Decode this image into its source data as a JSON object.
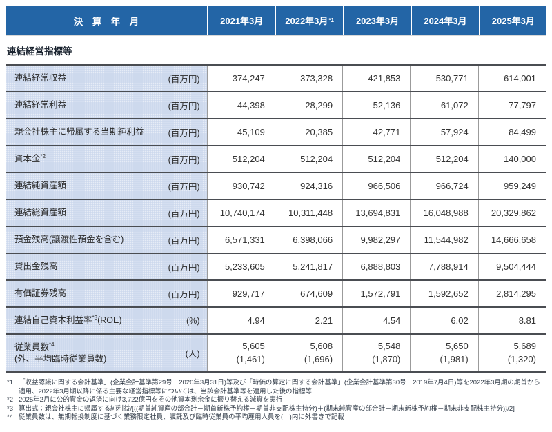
{
  "header": {
    "label": "決　算　年　月",
    "columns": [
      {
        "label": "2021年3月",
        "sup": ""
      },
      {
        "label": "2022年3月",
        "sup": "*1"
      },
      {
        "label": "2023年3月",
        "sup": ""
      },
      {
        "label": "2024年3月",
        "sup": ""
      },
      {
        "label": "2025年3月",
        "sup": ""
      }
    ]
  },
  "section_title": "連結経営指標等",
  "table": {
    "rows": [
      {
        "label": "連結経常収益",
        "sup": "",
        "suffix": "",
        "label_line2": "",
        "unit": "(百万円)",
        "values": [
          "374,247",
          "373,328",
          "421,853",
          "530,771",
          "614,001"
        ],
        "sub_values": []
      },
      {
        "label": "連結経常利益",
        "sup": "",
        "suffix": "",
        "label_line2": "",
        "unit": "(百万円)",
        "values": [
          "44,398",
          "28,299",
          "52,136",
          "61,072",
          "77,797"
        ],
        "sub_values": []
      },
      {
        "label": "親会社株主に帰属する当期純利益",
        "sup": "",
        "suffix": "",
        "label_line2": "",
        "unit": "(百万円)",
        "values": [
          "45,109",
          "20,385",
          "42,771",
          "57,924",
          "84,499"
        ],
        "sub_values": []
      },
      {
        "label": "資本金",
        "sup": "*2",
        "suffix": "",
        "label_line2": "",
        "unit": "(百万円)",
        "values": [
          "512,204",
          "512,204",
          "512,204",
          "512,204",
          "140,000"
        ],
        "sub_values": []
      },
      {
        "label": "連結純資産額",
        "sup": "",
        "suffix": "",
        "label_line2": "",
        "unit": "(百万円)",
        "values": [
          "930,742",
          "924,316",
          "966,506",
          "966,724",
          "959,249"
        ],
        "sub_values": []
      },
      {
        "label": "連結総資産額",
        "sup": "",
        "suffix": "",
        "label_line2": "",
        "unit": "(百万円)",
        "values": [
          "10,740,174",
          "10,311,448",
          "13,694,831",
          "16,048,988",
          "20,329,862"
        ],
        "sub_values": []
      },
      {
        "label": "預金残高(譲渡性預金を含む)",
        "sup": "",
        "suffix": "",
        "label_line2": "",
        "unit": "(百万円)",
        "values": [
          "6,571,331",
          "6,398,066",
          "9,982,297",
          "11,544,982",
          "14,666,658"
        ],
        "sub_values": []
      },
      {
        "label": "貸出金残高",
        "sup": "",
        "suffix": "",
        "label_line2": "",
        "unit": "(百万円)",
        "values": [
          "5,233,605",
          "5,241,817",
          "6,888,803",
          "7,788,914",
          "9,504,444"
        ],
        "sub_values": []
      },
      {
        "label": "有価証券残高",
        "sup": "",
        "suffix": "",
        "label_line2": "",
        "unit": "(百万円)",
        "values": [
          "929,717",
          "674,609",
          "1,572,791",
          "1,592,652",
          "2,814,295"
        ],
        "sub_values": []
      },
      {
        "label": "連結自己資本利益率",
        "sup": "*3",
        "suffix": "(ROE)",
        "label_line2": "",
        "unit": "(%)",
        "values": [
          "4.94",
          "2.21",
          "4.54",
          "6.02",
          "8.81"
        ],
        "sub_values": []
      },
      {
        "label": "従業員数",
        "sup": "*4",
        "suffix": "",
        "label_line2": "(外、平均臨時従業員数)",
        "unit": "(人)",
        "values": [
          "5,605",
          "5,608",
          "5,548",
          "5,650",
          "5,689"
        ],
        "sub_values": [
          "(1,461)",
          "(1,696)",
          "(1,870)",
          "(1,981)",
          "(1,320)"
        ]
      }
    ]
  },
  "footnotes": [
    {
      "marker": "*1",
      "text": "「収益認識に関する会計基準」(企業会計基準第29号　2020年3月31日)等及び「時価の算定に関する会計基準」(企業会計基準第30号　2019年7月4日)等を2022年3月期の期首から適用、2022年3月期以降に係る主要な経営指標等については、当該会計基準等を適用した後の指標等"
    },
    {
      "marker": "*2",
      "text": "2025年2月に公的資金の返済に向け3,722億円をその他資本剰余金に振り替える減資を実行"
    },
    {
      "marker": "*3",
      "text": "算出式：親会社株主に帰属する純利益/[{(期首純資産の部合計－期首新株予約権－期首非支配株主持分)＋(期末純資産の部合計－期末新株予約権－期末非支配株主持分)}/2]"
    },
    {
      "marker": "*4",
      "text": "従業員数は、無期転換制度に基づく業務限定社員、嘱託及び臨時従業員の平均雇用人員を(　)内に外書きで記載"
    }
  ]
}
